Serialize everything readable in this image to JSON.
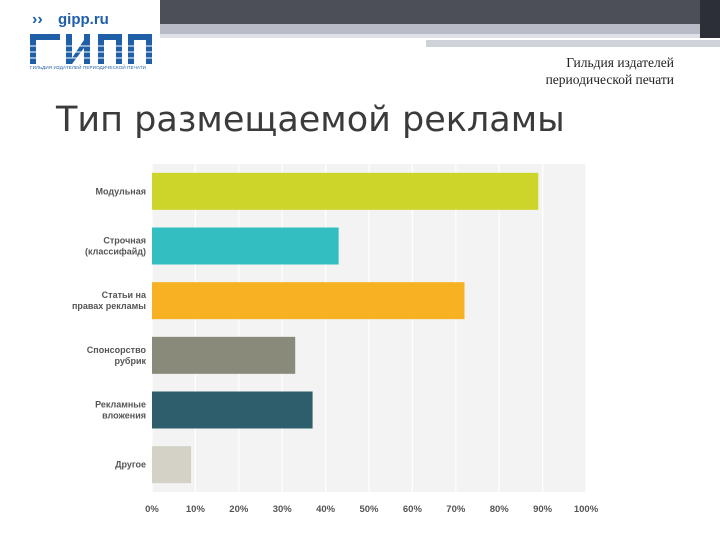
{
  "logo": {
    "site": "gipp.ru",
    "caption": "ГИЛЬДИЯ ИЗДАТЕЛЕЙ ПЕРИОДИЧЕСКОЙ ПЕЧАТИ",
    "mark_text": "ГИПП"
  },
  "header": {
    "guild_line1": "Гильдия издателей",
    "guild_line2": "периодической печати"
  },
  "slide": {
    "title": "Тип размещаемой рекламы"
  },
  "colors": {
    "brand_blue": "#1f5fa8",
    "header_dark": "#4c4f56"
  },
  "chart_data": {
    "type": "bar",
    "orientation": "horizontal",
    "categories": [
      [
        "Модульная"
      ],
      [
        "Строчная",
        "(классифайд)"
      ],
      [
        "Статьи на",
        "правах рекламы"
      ],
      [
        "Спонсорство",
        "рубрик"
      ],
      [
        "Рекламные",
        "вложения"
      ],
      [
        "Другое"
      ]
    ],
    "values": [
      89,
      43,
      72,
      33,
      37,
      9
    ],
    "colors": [
      "#cdd52b",
      "#33bfc1",
      "#f8b122",
      "#8a8a7b",
      "#2e5d6b",
      "#d4d2c7"
    ],
    "xlim": [
      0,
      100
    ],
    "xticks": [
      "0%",
      "10%",
      "20%",
      "30%",
      "40%",
      "50%",
      "60%",
      "70%",
      "80%",
      "90%",
      "100%"
    ],
    "grid": true,
    "legend": "none"
  }
}
